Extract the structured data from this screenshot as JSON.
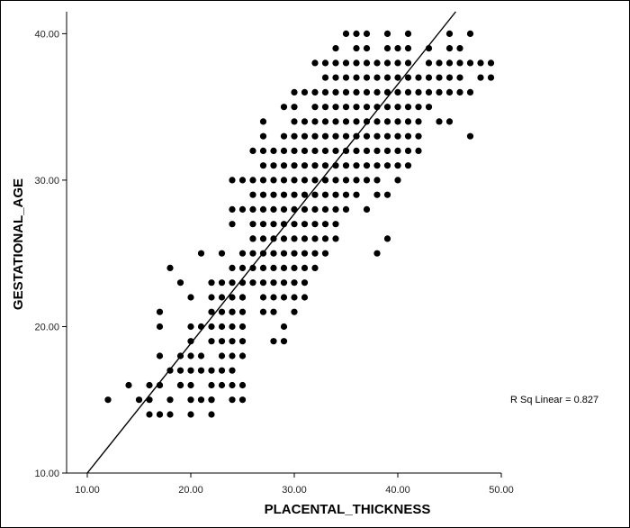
{
  "chart_data": {
    "type": "scatter",
    "xlabel": "PLACENTAL_THICKNESS",
    "ylabel": "GESTATIONAL_AGE",
    "xlim": [
      8.0,
      50.0
    ],
    "ylim": [
      10.0,
      41.5
    ],
    "x_ticks": [
      "10.00",
      "20.00",
      "30.00",
      "40.00",
      "50.00"
    ],
    "x_tick_values": [
      10,
      20,
      30,
      40,
      50
    ],
    "y_ticks": [
      "10.00",
      "20.00",
      "30.00",
      "40.00"
    ],
    "y_tick_values": [
      10,
      20,
      30,
      40
    ],
    "grid": false,
    "point_color": "#000000",
    "annotation": "R Sq Linear = 0.827",
    "fit_line": {
      "type": "linear",
      "x": [
        10,
        45.6
      ],
      "y": [
        10,
        41.5
      ]
    },
    "points": {
      "x": [
        12,
        14,
        15,
        16,
        16,
        16,
        17,
        17,
        17,
        17,
        17,
        17,
        17,
        18,
        18,
        18,
        18,
        19,
        19,
        19,
        19,
        19,
        20,
        20,
        20,
        20,
        20,
        20,
        20,
        20,
        21,
        21,
        21,
        21,
        21,
        22,
        22,
        22,
        22,
        22,
        22,
        22,
        22,
        22,
        22,
        23,
        23,
        23,
        23,
        23,
        23,
        23,
        23,
        23,
        24,
        24,
        24,
        24,
        24,
        24,
        24,
        24,
        24,
        24,
        24,
        24,
        24,
        24,
        25,
        25,
        25,
        25,
        25,
        25,
        25,
        25,
        25,
        25,
        25,
        25,
        25,
        26,
        26,
        26,
        26,
        26,
        26,
        26,
        26,
        26,
        26,
        27,
        27,
        27,
        27,
        27,
        27,
        27,
        27,
        27,
        27,
        27,
        27,
        27,
        27,
        28,
        28,
        28,
        28,
        28,
        28,
        28,
        28,
        28,
        28,
        28,
        28,
        28,
        29,
        29,
        29,
        29,
        29,
        29,
        29,
        29,
        29,
        29,
        29,
        29,
        29,
        29,
        29,
        30,
        30,
        30,
        30,
        30,
        30,
        30,
        30,
        30,
        30,
        30,
        30,
        30,
        30,
        30,
        30,
        31,
        31,
        31,
        31,
        31,
        31,
        31,
        31,
        31,
        31,
        31,
        31,
        31,
        31,
        32,
        32,
        32,
        32,
        32,
        32,
        32,
        32,
        32,
        32,
        32,
        32,
        32,
        32,
        33,
        33,
        33,
        33,
        33,
        33,
        33,
        33,
        33,
        33,
        33,
        33,
        33,
        33,
        34,
        34,
        34,
        34,
        34,
        34,
        34,
        34,
        34,
        34,
        34,
        34,
        34,
        34,
        35,
        35,
        35,
        35,
        35,
        35,
        35,
        35,
        35,
        35,
        35,
        35,
        36,
        36,
        36,
        36,
        36,
        36,
        36,
        36,
        36,
        36,
        36,
        36,
        37,
        37,
        37,
        37,
        37,
        37,
        37,
        37,
        37,
        37,
        37,
        37,
        38,
        38,
        38,
        38,
        38,
        38,
        38,
        38,
        38,
        38,
        38,
        39,
        39,
        39,
        39,
        39,
        39,
        39,
        39,
        39,
        39,
        39,
        39,
        40,
        40,
        40,
        40,
        40,
        40,
        40,
        40,
        40,
        40,
        41,
        41,
        41,
        41,
        41,
        41,
        41,
        41,
        41,
        41,
        42,
        42,
        42,
        42,
        42,
        42,
        43,
        43,
        43,
        43,
        43,
        44,
        44,
        44,
        44,
        45,
        45,
        45,
        45,
        45,
        45,
        46,
        46,
        46,
        46,
        47,
        47,
        47,
        47,
        48,
        48,
        49,
        49
      ],
      "y": [
        15,
        16,
        15,
        14,
        15,
        16,
        14,
        16,
        18,
        20,
        21,
        14,
        16,
        14,
        15,
        17,
        24,
        16,
        18,
        23,
        17,
        16,
        14,
        15,
        16,
        18,
        19,
        20,
        22,
        17,
        15,
        17,
        18,
        20,
        25,
        14,
        15,
        16,
        17,
        19,
        20,
        21,
        22,
        23,
        15,
        16,
        17,
        18,
        19,
        20,
        21,
        22,
        23,
        25,
        15,
        16,
        17,
        18,
        19,
        20,
        21,
        22,
        23,
        24,
        27,
        28,
        30,
        21,
        15,
        16,
        18,
        19,
        20,
        21,
        22,
        23,
        24,
        25,
        28,
        30,
        22,
        23,
        24,
        25,
        26,
        27,
        28,
        29,
        30,
        32,
        26,
        21,
        22,
        23,
        24,
        25,
        26,
        27,
        28,
        29,
        30,
        31,
        32,
        33,
        34,
        19,
        21,
        22,
        23,
        24,
        25,
        26,
        27,
        28,
        29,
        30,
        31,
        32,
        19,
        20,
        22,
        23,
        24,
        25,
        26,
        27,
        28,
        29,
        30,
        31,
        32,
        33,
        35,
        21,
        22,
        23,
        24,
        25,
        26,
        27,
        28,
        29,
        30,
        31,
        32,
        33,
        34,
        35,
        36,
        22,
        23,
        24,
        25,
        26,
        27,
        28,
        29,
        30,
        31,
        32,
        33,
        34,
        36,
        24,
        25,
        26,
        27,
        28,
        29,
        30,
        31,
        32,
        33,
        34,
        35,
        36,
        38,
        25,
        26,
        27,
        28,
        29,
        30,
        31,
        32,
        33,
        34,
        35,
        36,
        37,
        38,
        26,
        27,
        28,
        29,
        30,
        31,
        32,
        33,
        34,
        35,
        36,
        37,
        38,
        39,
        28,
        29,
        30,
        31,
        32,
        33,
        34,
        35,
        36,
        37,
        38,
        40,
        29,
        30,
        31,
        32,
        33,
        34,
        35,
        36,
        37,
        38,
        39,
        40,
        28,
        30,
        31,
        32,
        33,
        34,
        35,
        36,
        37,
        38,
        39,
        40,
        25,
        29,
        30,
        31,
        32,
        33,
        34,
        35,
        36,
        37,
        38,
        26,
        29,
        31,
        32,
        33,
        34,
        35,
        36,
        37,
        38,
        39,
        40,
        30,
        31,
        32,
        33,
        34,
        35,
        36,
        37,
        38,
        39,
        31,
        32,
        33,
        34,
        35,
        36,
        37,
        38,
        39,
        40,
        32,
        33,
        34,
        35,
        36,
        37,
        35,
        36,
        37,
        38,
        39,
        34,
        36,
        37,
        38,
        36,
        37,
        38,
        39,
        40,
        34,
        36,
        37,
        38,
        39,
        33,
        36,
        38,
        40,
        37,
        38,
        37,
        38
      ]
    }
  }
}
